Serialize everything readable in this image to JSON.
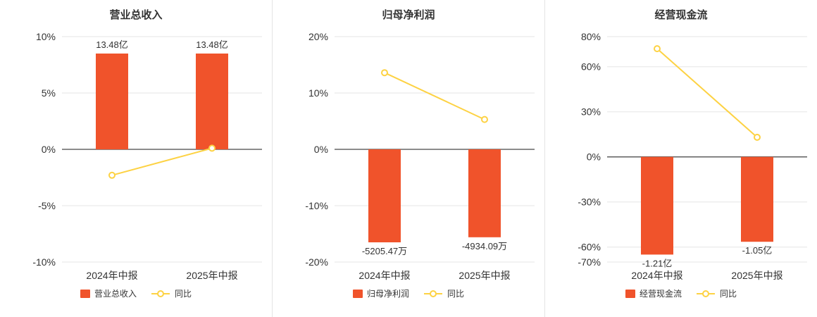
{
  "colors": {
    "bar": "#f0532b",
    "line": "#fdd243",
    "grid": "#e6e6e6",
    "zero_line": "#666666",
    "text": "#333333"
  },
  "chart_data": [
    {
      "type": "bar",
      "title": "营业总收入",
      "categories": [
        "2024年中报",
        "2025年中报"
      ],
      "series": [
        {
          "name": "营业总收入",
          "kind": "bar",
          "values_pct": [
            8.5,
            8.5
          ],
          "labels": [
            "13.48亿",
            "13.48亿"
          ]
        },
        {
          "name": "同比",
          "kind": "line",
          "values_pct": [
            -2.3,
            0.1
          ]
        }
      ],
      "ylim": [
        -10,
        10
      ],
      "yticks": [
        10,
        5,
        0,
        -5,
        -10
      ],
      "ytick_suffix": "%",
      "grid": true,
      "legend_position": "bottom"
    },
    {
      "type": "bar",
      "title": "归母净利润",
      "categories": [
        "2024年中报",
        "2025年中报"
      ],
      "series": [
        {
          "name": "归母净利润",
          "kind": "bar",
          "values_pct": [
            -16.5,
            -15.6
          ],
          "labels": [
            "-5205.47万",
            "-4934.09万"
          ]
        },
        {
          "name": "同比",
          "kind": "line",
          "values_pct": [
            13.6,
            5.3
          ]
        }
      ],
      "ylim": [
        -20,
        20
      ],
      "yticks": [
        20,
        10,
        0,
        -10,
        -20
      ],
      "ytick_suffix": "%",
      "grid": true,
      "legend_position": "bottom"
    },
    {
      "type": "bar",
      "title": "经营现金流",
      "categories": [
        "2024年中报",
        "2025年中报"
      ],
      "series": [
        {
          "name": "经营现金流",
          "kind": "bar",
          "values_pct": [
            -65,
            -56.5
          ],
          "labels": [
            "-1.21亿",
            "-1.05亿"
          ]
        },
        {
          "name": "同比",
          "kind": "line",
          "values_pct": [
            72,
            13
          ]
        }
      ],
      "ylim": [
        -70,
        80
      ],
      "yticks": [
        80,
        60,
        30,
        0,
        -30,
        -60,
        -70
      ],
      "ytick_suffix": "%",
      "grid": true,
      "legend_position": "bottom"
    }
  ]
}
